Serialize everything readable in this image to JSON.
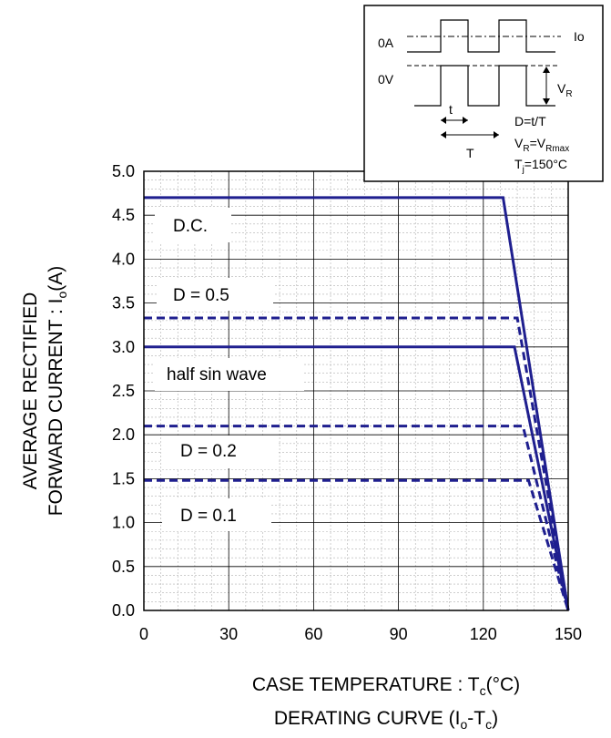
{
  "chart_data": {
    "type": "line",
    "xlabel": "CASE TEMPERATURE : T",
    "xlabel_sub": "c",
    "xlabel_unit": "(°C)",
    "caption_main": "DERATING CURVE (I",
    "caption_sub1": "o",
    "caption_mid": "-T",
    "caption_sub2": "c",
    "caption_end": ")",
    "ylabel_line1": "AVERAGE RECTIFIED",
    "ylabel_line2_main": "FORWARD CURRENT : I",
    "ylabel_line2_sub": "o",
    "ylabel_line2_end": "(A)",
    "xlim": [
      0,
      150
    ],
    "ylim": [
      0,
      5.0
    ],
    "x_ticks": [
      "0",
      "30",
      "60",
      "90",
      "120",
      "150"
    ],
    "y_ticks": [
      "0.0",
      "0.5",
      "1.0",
      "1.5",
      "2.0",
      "2.5",
      "3.0",
      "3.5",
      "4.0",
      "4.5",
      "5.0"
    ],
    "grid": true,
    "colors": {
      "series": "#1f1f8f",
      "grid": "#b0b0b0",
      "frame": "#000000"
    },
    "series": [
      {
        "name": "D.C.",
        "style": "solid",
        "points": [
          [
            0,
            4.7
          ],
          [
            127,
            4.7
          ],
          [
            150,
            0
          ]
        ]
      },
      {
        "name": "D = 0.5",
        "style": "dashed",
        "points": [
          [
            0,
            3.33
          ],
          [
            132,
            3.33
          ],
          [
            150,
            0
          ]
        ]
      },
      {
        "name": "half sin wave",
        "style": "solid",
        "points": [
          [
            0,
            3.0
          ],
          [
            131,
            3.0
          ],
          [
            150,
            0
          ]
        ]
      },
      {
        "name": "D = 0.2",
        "style": "dashed",
        "points": [
          [
            0,
            2.1
          ],
          [
            134,
            2.1
          ],
          [
            150,
            0
          ]
        ]
      },
      {
        "name": "D = 0.1",
        "style": "dashed",
        "points": [
          [
            0,
            1.48
          ],
          [
            136,
            1.48
          ],
          [
            150,
            0
          ]
        ]
      }
    ],
    "inset": {
      "label_0A": "0A",
      "label_0V": "0V",
      "label_Io": "Io",
      "label_t": "t",
      "label_T": "T",
      "label_VR": "V",
      "label_VR_sub": "R",
      "eq1": "D=t/T",
      "eq2_a": "V",
      "eq2_a_sub": "R",
      "eq2_b": "=V",
      "eq2_b_sub": "Rmax",
      "eq3_a": "T",
      "eq3_a_sub": "j",
      "eq3_b": "=150°C"
    }
  }
}
